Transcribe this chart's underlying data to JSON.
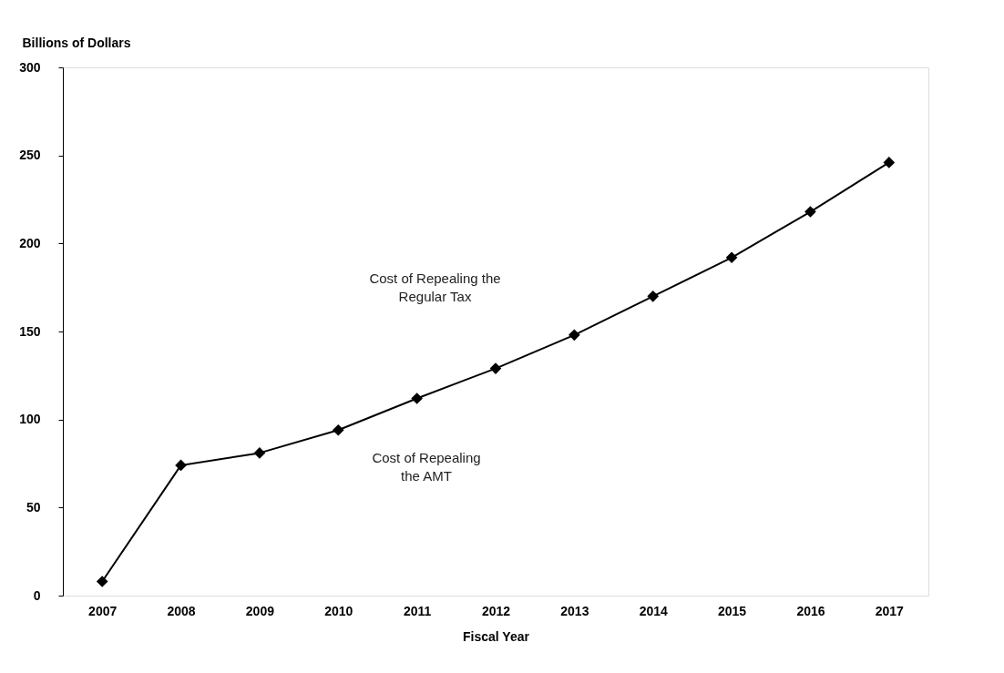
{
  "chart_data": {
    "type": "line",
    "ylabel": "Billions of Dollars",
    "xlabel": "Fiscal Year",
    "categories": [
      "2007",
      "2008",
      "2009",
      "2010",
      "2011",
      "2012",
      "2013",
      "2014",
      "2015",
      "2016",
      "2017"
    ],
    "series": [
      {
        "color": "#000000",
        "values": [
          8,
          74,
          81,
          94,
          112,
          129,
          148,
          170,
          192,
          218,
          246
        ]
      }
    ],
    "ylim": [
      0,
      300
    ],
    "yticks": [
      0,
      50,
      100,
      150,
      200,
      250,
      300
    ],
    "marker": "diamond",
    "line_style": "solid",
    "grid": false,
    "annotations": [
      "Cost of Repealing the\nRegular Tax",
      "Cost of Repealing\nthe AMT"
    ]
  }
}
